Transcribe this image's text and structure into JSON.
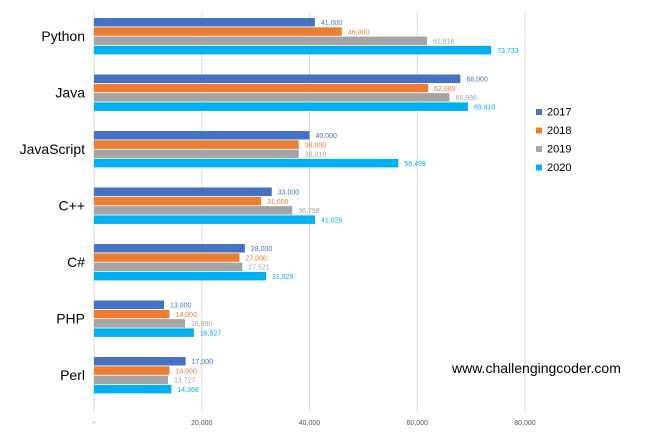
{
  "chart_data": {
    "type": "bar",
    "orientation": "horizontal",
    "categories": [
      "Python",
      "Java",
      "JavaScript",
      "C++",
      "C#",
      "PHP",
      "Perl"
    ],
    "series": [
      {
        "name": "2017",
        "color": "#4472C4",
        "values": [
          41000,
          68000,
          40000,
          33000,
          28000,
          13000,
          17000
        ],
        "labels": [
          "41,000",
          "68,000",
          "40,000",
          "33,000",
          "28,000",
          "13,000",
          "17,000"
        ]
      },
      {
        "name": "2018",
        "color": "#ED7D31",
        "values": [
          46000,
          62000,
          38000,
          31000,
          27000,
          14000,
          14000
        ],
        "labels": [
          "46,000",
          "62,000",
          "38,000",
          "31,000",
          "27,000",
          "14,000",
          "14,000"
        ]
      },
      {
        "name": "2019",
        "color": "#A5A5A5",
        "values": [
          61818,
          65986,
          38018,
          36798,
          27521,
          16890,
          13727
        ],
        "labels": [
          "61,818",
          "65,986",
          "38,018",
          "36,798",
          "27,521",
          "16,890",
          "13,727"
        ]
      },
      {
        "name": "2020",
        "color": "#00B0F0",
        "values": [
          73733,
          69410,
          56499,
          41026,
          31929,
          18527,
          14368
        ],
        "labels": [
          "73,733",
          "69,410",
          "56,499",
          "41,026",
          "31,929",
          "18,527",
          "14,368"
        ]
      }
    ],
    "xlim": [
      0,
      80000
    ],
    "x_ticks": [
      0,
      20000,
      40000,
      60000,
      80000
    ],
    "x_tick_labels": [
      "-",
      "20,000",
      "40,000",
      "60,000",
      "80,000"
    ],
    "grid": true,
    "legend_position": "right",
    "title": "",
    "xlabel": "",
    "ylabel": ""
  },
  "watermark": "www.challengingcoder.com"
}
